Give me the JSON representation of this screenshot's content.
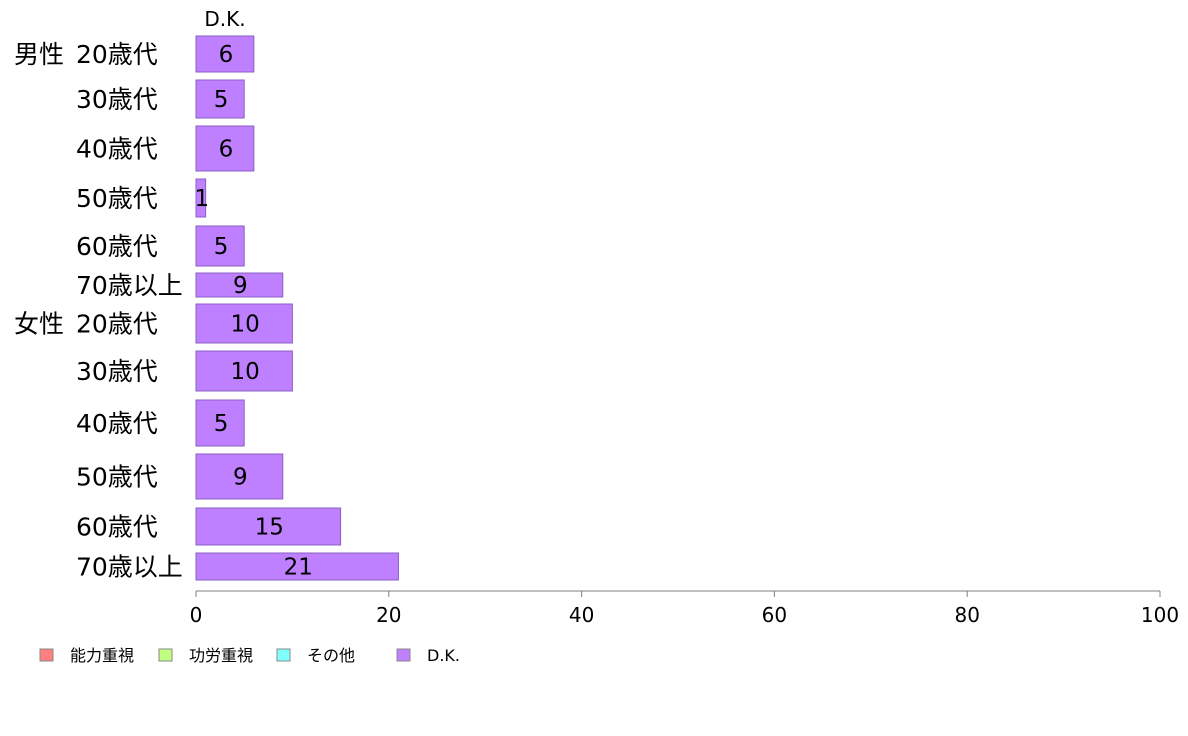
{
  "chart_data": {
    "type": "bar",
    "orientation": "horizontal",
    "stacked": true,
    "segment_header": "D.K.",
    "groups": [
      "男性",
      "女性"
    ],
    "categories": [
      "20歳代",
      "30歳代",
      "40歳代",
      "50歳代",
      "60歳代",
      "70歳以上",
      "20歳代",
      "30歳代",
      "40歳代",
      "50歳代",
      "60歳代",
      "70歳以上"
    ],
    "series": [
      {
        "name": "能力重視",
        "color": "#ff8080",
        "values": [
          0,
          0,
          0,
          0,
          0,
          0,
          0,
          0,
          0,
          0,
          0,
          0
        ]
      },
      {
        "name": "功労重視",
        "color": "#c0ff80",
        "values": [
          0,
          0,
          0,
          0,
          0,
          0,
          0,
          0,
          0,
          0,
          0,
          0
        ]
      },
      {
        "name": "その他",
        "color": "#80ffff",
        "values": [
          0,
          0,
          0,
          0,
          0,
          0,
          0,
          0,
          0,
          0,
          0,
          0
        ]
      },
      {
        "name": "D.K.",
        "color": "#bf80ff",
        "values": [
          6,
          5,
          6,
          1,
          5,
          9,
          10,
          10,
          5,
          9,
          15,
          21
        ]
      }
    ],
    "xlim": [
      0,
      100
    ],
    "xticks": [
      0,
      20,
      40,
      60,
      80,
      100
    ],
    "legend_position": "bottom-left"
  }
}
